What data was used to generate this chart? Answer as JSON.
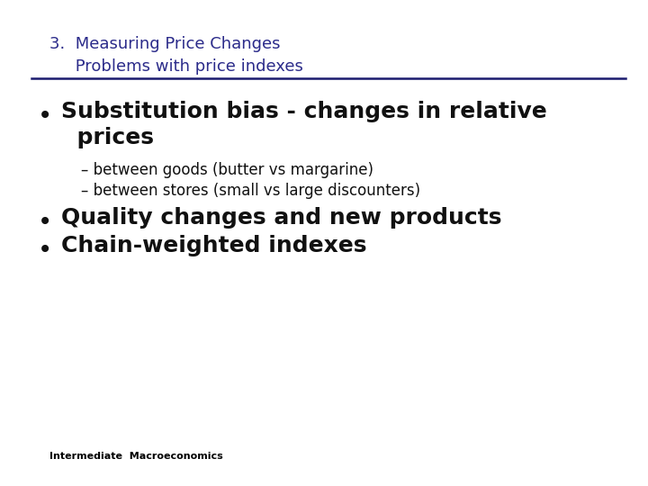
{
  "background_color": "#ffffff",
  "title_line1": "3.  Measuring Price Changes",
  "title_line2": "     Problems with price indexes",
  "title_color": "#2b2b8a",
  "title_fontsize": 13,
  "divider_color": "#1a1a6e",
  "bullet1_fontsize": 18,
  "sub_fontsize": 12,
  "bullet2_fontsize": 18,
  "bullet3_fontsize": 18,
  "bullet_color": "#111111",
  "sub_color": "#111111",
  "footer_text": "Intermediate  Macroeconomics",
  "footer_fontsize": 8,
  "footer_color": "#000000"
}
